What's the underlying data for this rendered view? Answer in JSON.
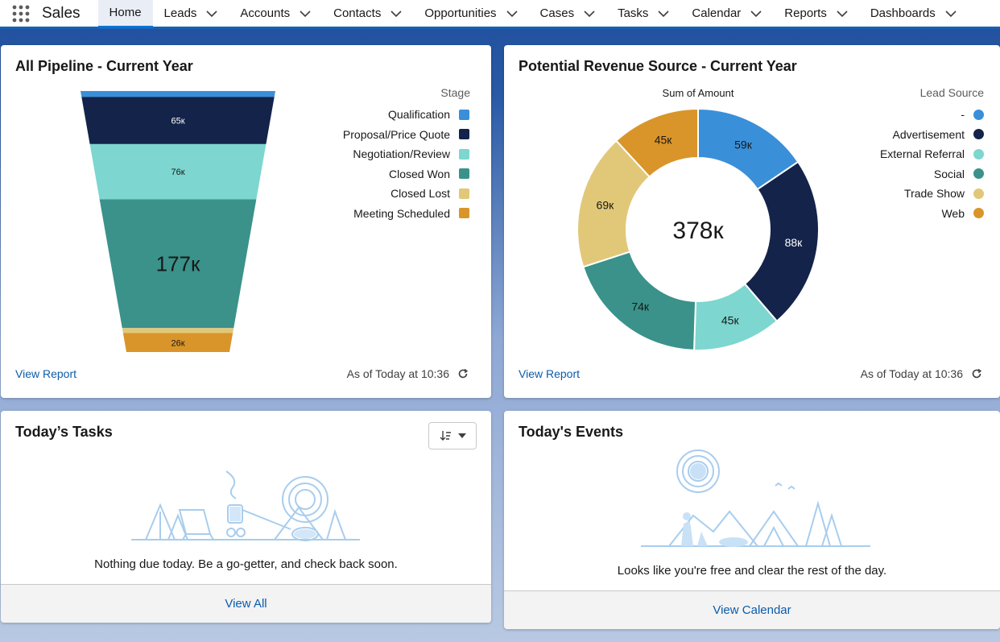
{
  "app": {
    "name": "Sales"
  },
  "nav": [
    {
      "label": "Home",
      "active": true,
      "chevron": false
    },
    {
      "label": "Leads",
      "chevron": true
    },
    {
      "label": "Accounts",
      "chevron": true
    },
    {
      "label": "Contacts",
      "chevron": true
    },
    {
      "label": "Opportunities",
      "chevron": true
    },
    {
      "label": "Cases",
      "chevron": true
    },
    {
      "label": "Tasks",
      "chevron": true
    },
    {
      "label": "Calendar",
      "chevron": true
    },
    {
      "label": "Reports",
      "chevron": true
    },
    {
      "label": "Dashboards",
      "chevron": true
    }
  ],
  "pipeline": {
    "title": "All Pipeline - Current Year",
    "view_report": "View Report",
    "as_of": "As of Today at 10:36",
    "legend_title": "Stage"
  },
  "revenue": {
    "title": "Potential Revenue Source - Current Year",
    "view_report": "View Report",
    "as_of": "As of Today at 10:36",
    "legend_title": "Lead Source",
    "subtitle": "Sum of Amount",
    "total_label": "378к"
  },
  "tasks": {
    "title": "Today’s Tasks",
    "empty": "Nothing due today. Be a go-getter, and check back soon.",
    "footer": "View All"
  },
  "events": {
    "title": "Today's Events",
    "empty": "Looks like you're free and clear the rest of the day.",
    "footer": "View Calendar"
  },
  "chart_data": [
    {
      "type": "funnel",
      "title": "All Pipeline - Current Year",
      "legend_title": "Stage",
      "categories": [
        "Qualification",
        "Proposal/Price Quote",
        "Negotiation/Review",
        "Closed Won",
        "Closed Lost",
        "Meeting Scheduled"
      ],
      "values": [
        8,
        65,
        76,
        177,
        7,
        26
      ],
      "labels": [
        "",
        "65к",
        "76к",
        "177к",
        "",
        "26к"
      ],
      "colors": [
        "#3a8fd9",
        "#14234a",
        "#7dd6cf",
        "#3a928a",
        "#e1c879",
        "#d9952a"
      ]
    },
    {
      "type": "donut",
      "title": "Potential Revenue Source - Current Year",
      "subtitle": "Sum of Amount",
      "legend_title": "Lead Source",
      "categories": [
        "-",
        "Advertisement",
        "External Referral",
        "Social",
        "Trade Show",
        "Web"
      ],
      "values": [
        59,
        88,
        45,
        74,
        69,
        45
      ],
      "labels": [
        "59к",
        "88к",
        "45к",
        "74к",
        "69к",
        "45к"
      ],
      "total": "378к",
      "colors": [
        "#3a8fd9",
        "#14234a",
        "#7dd6cf",
        "#3a928a",
        "#e1c879",
        "#d9952a"
      ]
    }
  ]
}
